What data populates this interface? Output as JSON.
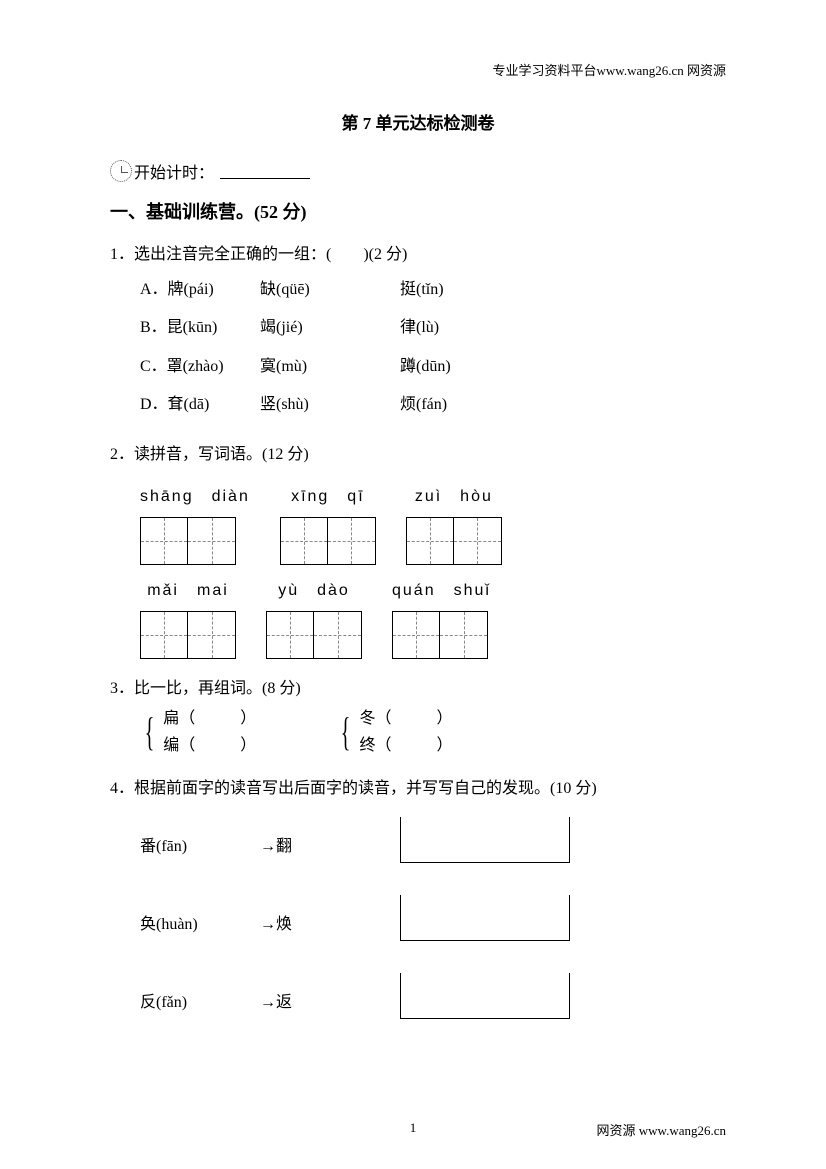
{
  "header_link": "专业学习资料平台www.wang26.cn 网资源",
  "title": "第 7 单元达标检测卷",
  "timer_label": "开始计时：",
  "section1": {
    "heading": "一、基础训练营。(52 分)",
    "q1": {
      "text": "1．选出注音完全正确的一组：(　　)(2 分)",
      "opts": {
        "A": {
          "label": "A．牌(pái)",
          "c2": "缺(qüē)",
          "c3": "挺(tǐn)"
        },
        "B": {
          "label": "B．昆(kūn)",
          "c2": "竭(jié)",
          "c3": "律(lù)"
        },
        "C": {
          "label": "C．罩(zhào)",
          "c2": "寞(mù)",
          "c3": "蹲(dūn)"
        },
        "D": {
          "label": "D．耷(dā)",
          "c2": "竖(shù)",
          "c3": "烦(fán)"
        }
      }
    },
    "q2": {
      "text": "2．读拼音，写词语。(12 分)",
      "row1": [
        "shāng　diàn",
        "xīng　qī",
        "zuì　hòu"
      ],
      "row2": [
        "mǎi　mai",
        "yù　dào",
        "quán　shuǐ"
      ]
    },
    "q3": {
      "text": "3．比一比，再组词。(8 分)",
      "pair1": {
        "a": "扁（",
        "a2": "）",
        "b": "编（",
        "b2": "）"
      },
      "pair2": {
        "a": "冬（",
        "a2": "）",
        "b": "终（",
        "b2": "）"
      }
    },
    "q4": {
      "text": "4．根据前面字的读音写出后面字的读音，并写写自己的发现。(10 分)",
      "rows": [
        {
          "left": "番(fān)",
          "arrow": "→翻"
        },
        {
          "left": "奂(huàn)",
          "arrow": "→焕"
        },
        {
          "left": "反(fǎn)",
          "arrow": "→返"
        }
      ]
    }
  },
  "footer": {
    "page": "1",
    "right": "网资源 www.wang26.cn"
  },
  "colors": {
    "text": "#000000",
    "bg": "#ffffff",
    "dash": "#888888"
  }
}
